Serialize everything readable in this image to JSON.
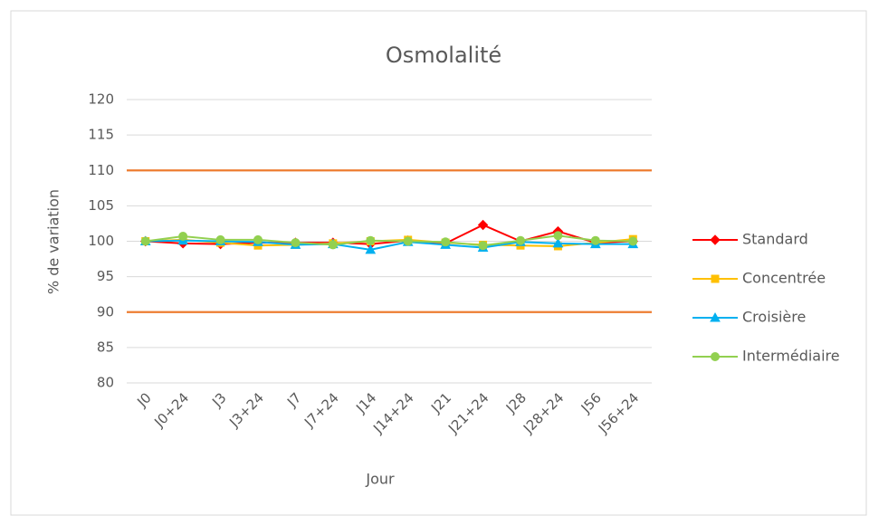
{
  "chart_data": {
    "type": "line",
    "title": "Osmolalité",
    "x_label": "Jour",
    "y_label": "% de variation",
    "categories": [
      "J0",
      "J0+24",
      "J3",
      "J3+24",
      "J7",
      "J7+24",
      "J14",
      "J14+24",
      "J21",
      "J21+24",
      "J28",
      "J28+24",
      "J56",
      "J56+24"
    ],
    "series": [
      {
        "name": "Standard",
        "color": "#ff0000",
        "marker": "diamond",
        "values": [
          100,
          99.7,
          99.6,
          99.8,
          99.8,
          99.8,
          99.6,
          100.1,
          99.7,
          102.3,
          100,
          101.4,
          99.8,
          100
        ]
      },
      {
        "name": "Concentrée",
        "color": "#ffc000",
        "marker": "square",
        "values": [
          100,
          100.2,
          99.8,
          99.4,
          99.5,
          99.7,
          100,
          100.2,
          99.8,
          99.5,
          99.4,
          99.3,
          99.8,
          100.3
        ]
      },
      {
        "name": "Croisière",
        "color": "#00b0f0",
        "marker": "triangle",
        "values": [
          100,
          100.1,
          100,
          99.9,
          99.5,
          99.6,
          98.8,
          99.9,
          99.5,
          99.1,
          99.9,
          99.7,
          99.6,
          99.6
        ]
      },
      {
        "name": "Intermédiaire",
        "color": "#92d050",
        "marker": "circle",
        "values": [
          100,
          100.7,
          100.2,
          100.2,
          99.8,
          99.5,
          100.1,
          100,
          99.9,
          99.4,
          100.1,
          100.8,
          100.1,
          100
        ]
      }
    ],
    "reference_lines": [
      110,
      90
    ],
    "reference_color": "#ed7d31",
    "ylim": [
      80,
      120
    ],
    "yticks": [
      80,
      85,
      90,
      95,
      100,
      105,
      110,
      115,
      120
    ],
    "grid": true,
    "legend": "right"
  }
}
